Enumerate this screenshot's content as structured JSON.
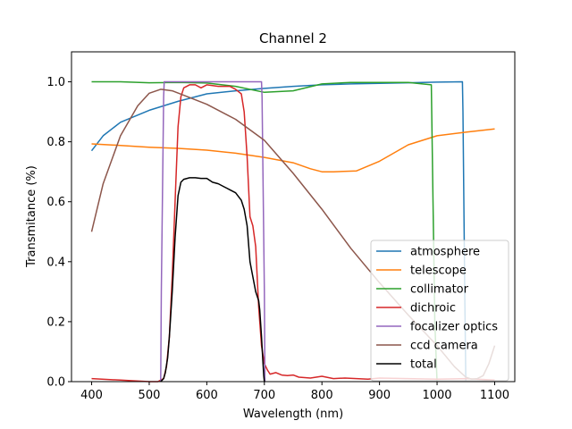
{
  "chart_data": {
    "type": "line",
    "title": "Channel 2",
    "xlabel": "Wavelength (nm)",
    "ylabel": "Transmitance (%)",
    "xlim": [
      365,
      1135
    ],
    "ylim": [
      0.0,
      1.1
    ],
    "xticks": [
      400,
      500,
      600,
      700,
      800,
      900,
      1000,
      1100
    ],
    "yticks": [
      0.0,
      0.2,
      0.4,
      0.6,
      0.8,
      1.0
    ],
    "xtick_labels": [
      "400",
      "500",
      "600",
      "700",
      "800",
      "900",
      "1000",
      "1100"
    ],
    "ytick_labels": [
      "0.0",
      "0.2",
      "0.4",
      "0.6",
      "0.8",
      "1.0"
    ],
    "legend_position": "lower-right",
    "series": [
      {
        "name": "atmosphere",
        "color": "#1f77b4",
        "x": [
          400,
          420,
          450,
          500,
          550,
          600,
          650,
          700,
          750,
          800,
          850,
          900,
          950,
          1000,
          1044,
          1045,
          1048,
          1050
        ],
        "y": [
          0.77,
          0.82,
          0.865,
          0.905,
          0.935,
          0.96,
          0.97,
          0.978,
          0.985,
          0.99,
          0.993,
          0.995,
          0.997,
          0.999,
          1.0,
          0.9,
          0.3,
          0.0
        ]
      },
      {
        "name": "telescope",
        "color": "#ff7f0e",
        "x": [
          400,
          450,
          500,
          550,
          600,
          650,
          700,
          750,
          780,
          800,
          820,
          860,
          900,
          950,
          1000,
          1050,
          1100
        ],
        "y": [
          0.793,
          0.788,
          0.782,
          0.778,
          0.772,
          0.762,
          0.748,
          0.73,
          0.71,
          0.7,
          0.7,
          0.703,
          0.735,
          0.79,
          0.82,
          0.832,
          0.843
        ]
      },
      {
        "name": "collimator",
        "color": "#2ca02c",
        "x": [
          400,
          450,
          500,
          550,
          600,
          650,
          700,
          750,
          800,
          850,
          900,
          950,
          990,
          993,
          996,
          1000
        ],
        "y": [
          1.0,
          1.0,
          0.997,
          0.998,
          0.996,
          0.985,
          0.965,
          0.97,
          0.993,
          0.998,
          0.998,
          0.998,
          0.99,
          0.6,
          0.2,
          0.0
        ]
      },
      {
        "name": "dichroic",
        "color": "#d62728",
        "x": [
          400,
          450,
          500,
          515,
          525,
          530,
          535,
          540,
          545,
          550,
          555,
          560,
          570,
          580,
          590,
          600,
          620,
          640,
          650,
          660,
          665,
          670,
          675,
          680,
          685,
          690,
          695,
          700,
          705,
          710,
          720,
          730,
          740,
          750,
          760,
          780,
          800,
          820,
          840,
          860,
          880,
          900,
          950,
          1000,
          1050,
          1100
        ],
        "y": [
          0.01,
          0.005,
          0.0,
          0.0,
          0.01,
          0.05,
          0.15,
          0.35,
          0.6,
          0.85,
          0.95,
          0.98,
          0.99,
          0.99,
          0.98,
          0.99,
          0.985,
          0.985,
          0.975,
          0.96,
          0.9,
          0.75,
          0.55,
          0.52,
          0.45,
          0.25,
          0.12,
          0.06,
          0.04,
          0.025,
          0.03,
          0.022,
          0.02,
          0.022,
          0.015,
          0.012,
          0.018,
          0.01,
          0.012,
          0.01,
          0.008,
          0.012,
          0.01,
          0.008,
          0.01,
          0.005
        ]
      },
      {
        "name": "focalizer optics",
        "color": "#9467bd",
        "x": [
          520,
          521,
          525,
          526,
          695,
          696,
          700,
          701
        ],
        "y": [
          0.0,
          0.3,
          0.95,
          1.0,
          1.0,
          0.95,
          0.3,
          0.0
        ]
      },
      {
        "name": "ccd camera",
        "color": "#8c564b",
        "x": [
          400,
          420,
          450,
          480,
          500,
          520,
          540,
          560,
          600,
          650,
          700,
          750,
          800,
          850,
          900,
          950,
          1000,
          1030,
          1050,
          1060,
          1070,
          1080,
          1090,
          1100
        ],
        "y": [
          0.5,
          0.66,
          0.82,
          0.92,
          0.962,
          0.975,
          0.97,
          0.955,
          0.925,
          0.875,
          0.805,
          0.695,
          0.575,
          0.445,
          0.33,
          0.222,
          0.12,
          0.05,
          0.015,
          0.008,
          0.01,
          0.02,
          0.06,
          0.12
        ]
      },
      {
        "name": "total",
        "color": "#000000",
        "x": [
          520,
          525,
          528,
          532,
          535,
          540,
          545,
          550,
          555,
          560,
          570,
          580,
          590,
          600,
          610,
          620,
          630,
          640,
          650,
          660,
          665,
          670,
          675,
          680,
          685,
          690,
          692,
          695,
          697,
          699,
          700
        ],
        "y": [
          0.0,
          0.01,
          0.03,
          0.08,
          0.15,
          0.3,
          0.48,
          0.62,
          0.665,
          0.675,
          0.68,
          0.68,
          0.678,
          0.678,
          0.665,
          0.66,
          0.65,
          0.64,
          0.63,
          0.605,
          0.575,
          0.52,
          0.4,
          0.35,
          0.3,
          0.27,
          0.24,
          0.15,
          0.08,
          0.02,
          0.0
        ]
      }
    ]
  }
}
